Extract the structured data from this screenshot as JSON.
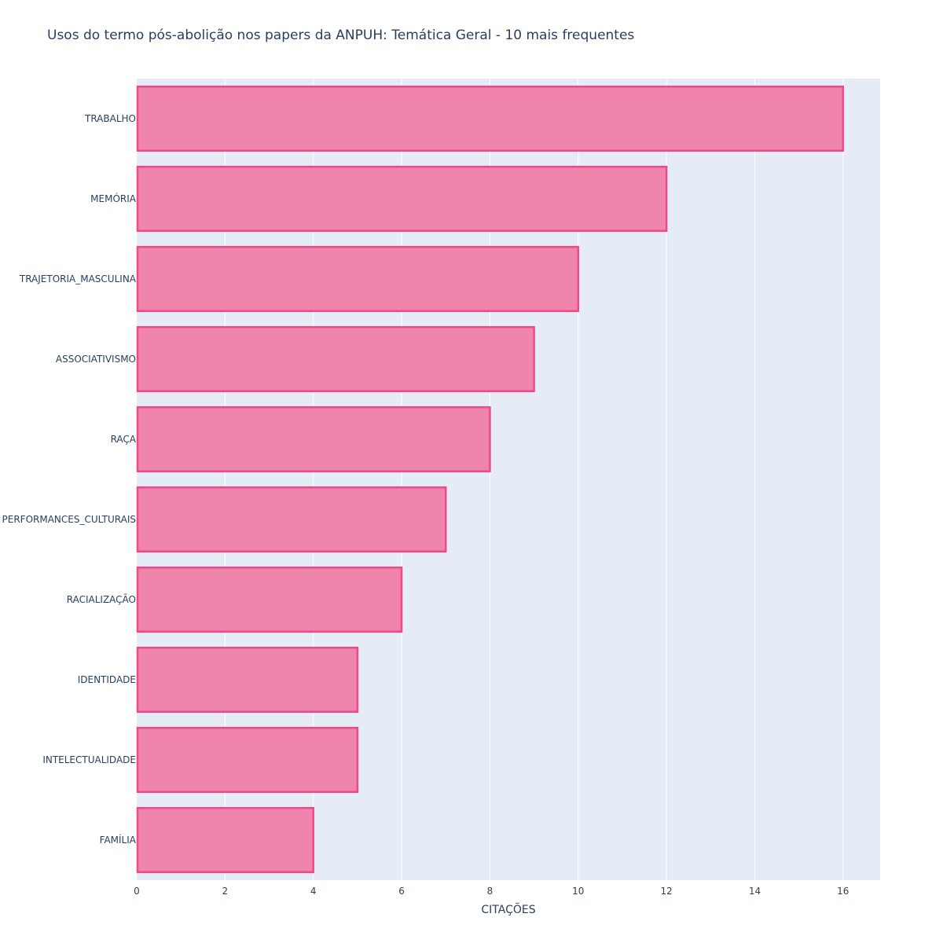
{
  "chart_data": {
    "type": "bar",
    "orientation": "horizontal",
    "title": "Usos do termo pós-abolição nos papers da ANPUH: Temática Geral - 10 mais frequentes",
    "xlabel": "CITAÇÕES",
    "ylabel": "",
    "categories": [
      "TRABALHO",
      "MEMÓRIA",
      "TRAJETORIA_MASCULINA",
      "ASSOCIATIVISMO",
      "RAÇA",
      "PERFORMANCES_CULTURAIS",
      "RACIALIZAÇÃO",
      "IDENTIDADE",
      "INTELECTUALIDADE",
      "FAMÍLIA"
    ],
    "values": [
      16,
      12,
      10,
      9,
      8,
      7,
      6,
      5,
      5,
      4
    ],
    "xlim": [
      0,
      16.84
    ],
    "xticks": [
      0,
      2,
      4,
      6,
      8,
      10,
      12,
      14,
      16
    ],
    "grid": true,
    "legend": "none",
    "colors": {
      "plot_background": "#e5ecf6",
      "bar_fill": "#ef84ad",
      "bar_outline": "#f0498a",
      "grid": "#ffffff",
      "text": "#2a3f5f"
    }
  }
}
